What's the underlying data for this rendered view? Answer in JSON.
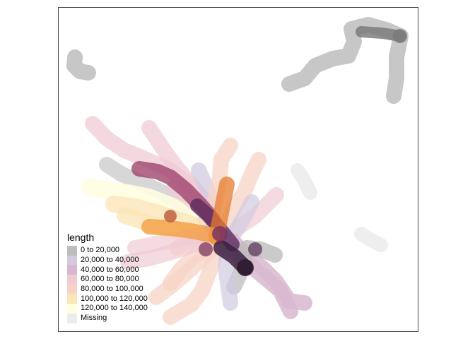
{
  "chart_data": {
    "type": "map",
    "legend": {
      "title": "length",
      "placement": "bottom-left",
      "classes": [
        {
          "label": "0 to 20,000",
          "color": "#bdbdbd"
        },
        {
          "label": "20,000 to 40,000",
          "color": "#d2cbe0"
        },
        {
          "label": "40,000 to 60,000",
          "color": "#d8b8d0"
        },
        {
          "label": "60,000 to 80,000",
          "color": "#f0cbd4"
        },
        {
          "label": "80,000 to 100,000",
          "color": "#f7d3c6"
        },
        {
          "label": "100,000 to 120,000",
          "color": "#fbe6b8"
        },
        {
          "label": "120,000 to 140,000",
          "color": "#fffde0"
        },
        {
          "label": "Missing",
          "color": "#ececec"
        }
      ]
    },
    "grid": false
  }
}
